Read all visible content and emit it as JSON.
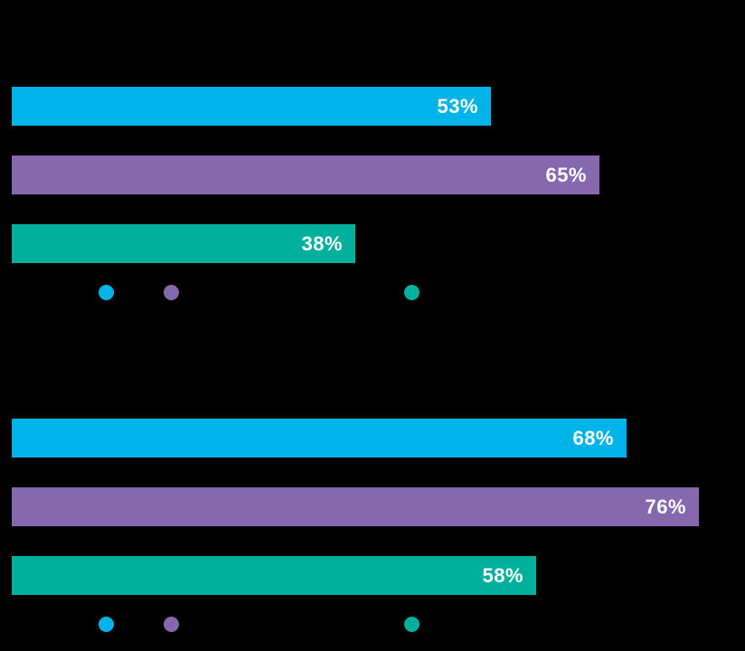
{
  "canvas": {
    "background": "#000000"
  },
  "chart_data": [
    {
      "type": "bar",
      "orientation": "horizontal",
      "values": [
        53,
        65,
        38
      ],
      "labels": [
        "53%",
        "65%",
        "38%"
      ],
      "colors": [
        "#00b3e8",
        "#8668ae",
        "#00b09c"
      ],
      "xlim": [
        0,
        100
      ],
      "grid": false,
      "axes_visible": false,
      "value_label_position": "inside-right",
      "value_label_color": "#ffffff",
      "legend": {
        "position": "bottom-left",
        "markers": [
          {
            "name": "legend-dot-cyan",
            "color": "#00b3e8"
          },
          {
            "name": "legend-dot-purple",
            "color": "#8668ae"
          },
          {
            "name": "legend-dot-teal",
            "color": "#00b09c"
          }
        ]
      }
    },
    {
      "type": "bar",
      "orientation": "horizontal",
      "values": [
        68,
        76,
        58
      ],
      "labels": [
        "68%",
        "76%",
        "58%"
      ],
      "colors": [
        "#00b3e8",
        "#8668ae",
        "#00b09c"
      ],
      "xlim": [
        0,
        100
      ],
      "grid": false,
      "axes_visible": false,
      "value_label_position": "inside-right",
      "value_label_color": "#ffffff",
      "legend": {
        "position": "bottom-left",
        "markers": [
          {
            "name": "legend-dot-cyan",
            "color": "#00b3e8"
          },
          {
            "name": "legend-dot-purple",
            "color": "#8668ae"
          },
          {
            "name": "legend-dot-teal",
            "color": "#00b09c"
          }
        ]
      }
    }
  ]
}
